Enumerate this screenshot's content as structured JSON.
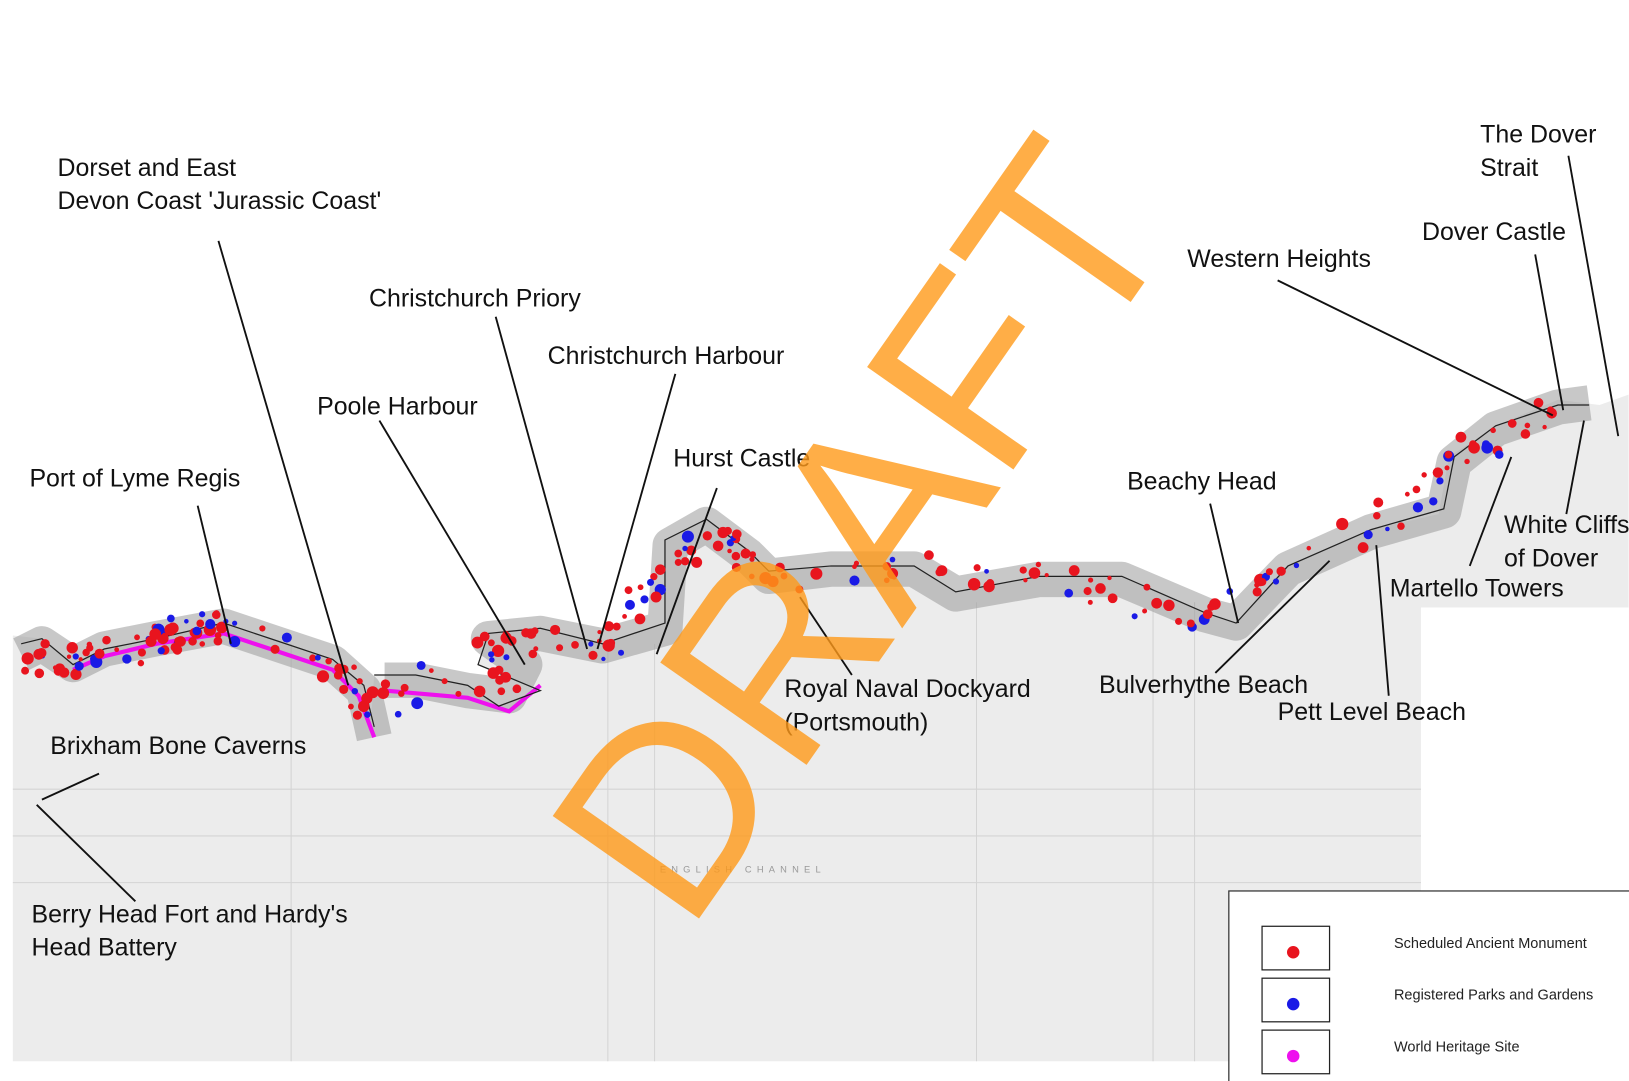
{
  "labels": [
    {
      "lines": [
        "Dorset and East",
        "Devon Coast 'Jurassic Coast'"
      ]
    },
    {
      "lines": [
        "Port of Lyme Regis"
      ]
    },
    {
      "lines": [
        "Poole Harbour"
      ]
    },
    {
      "lines": [
        "Christchurch Priory"
      ]
    },
    {
      "lines": [
        "Christchurch Harbour"
      ]
    },
    {
      "lines": [
        "Hurst Castle"
      ]
    },
    {
      "lines": [
        "Royal Naval Dockyard",
        "(Portsmouth)"
      ]
    },
    {
      "lines": [
        "Western Heights"
      ]
    },
    {
      "lines": [
        "Dover Castle"
      ]
    },
    {
      "lines": [
        "The Dover",
        "Strait"
      ]
    },
    {
      "lines": [
        "Beachy Head"
      ]
    },
    {
      "lines": [
        "White Cliffs",
        "of Dover"
      ]
    },
    {
      "lines": [
        "Martello Towers"
      ]
    },
    {
      "lines": [
        "Bulverhythe Beach"
      ]
    },
    {
      "lines": [
        "Pett Level Beach"
      ]
    },
    {
      "lines": [
        "Brixham Bone Caverns"
      ]
    },
    {
      "lines": [
        "Berry Head Fort and Hardy's",
        "Head Battery"
      ]
    }
  ],
  "sea_label": "ENGLISH CHANNEL",
  "watermark": "DRAFT",
  "legend": [
    {
      "name": "Scheduled Ancient Monument",
      "color": "#e8141e"
    },
    {
      "name": "Registered Parks and Gardens",
      "color": "#1a1ae6"
    },
    {
      "name": "World Heritage Site",
      "color": "#ee10ee"
    }
  ]
}
